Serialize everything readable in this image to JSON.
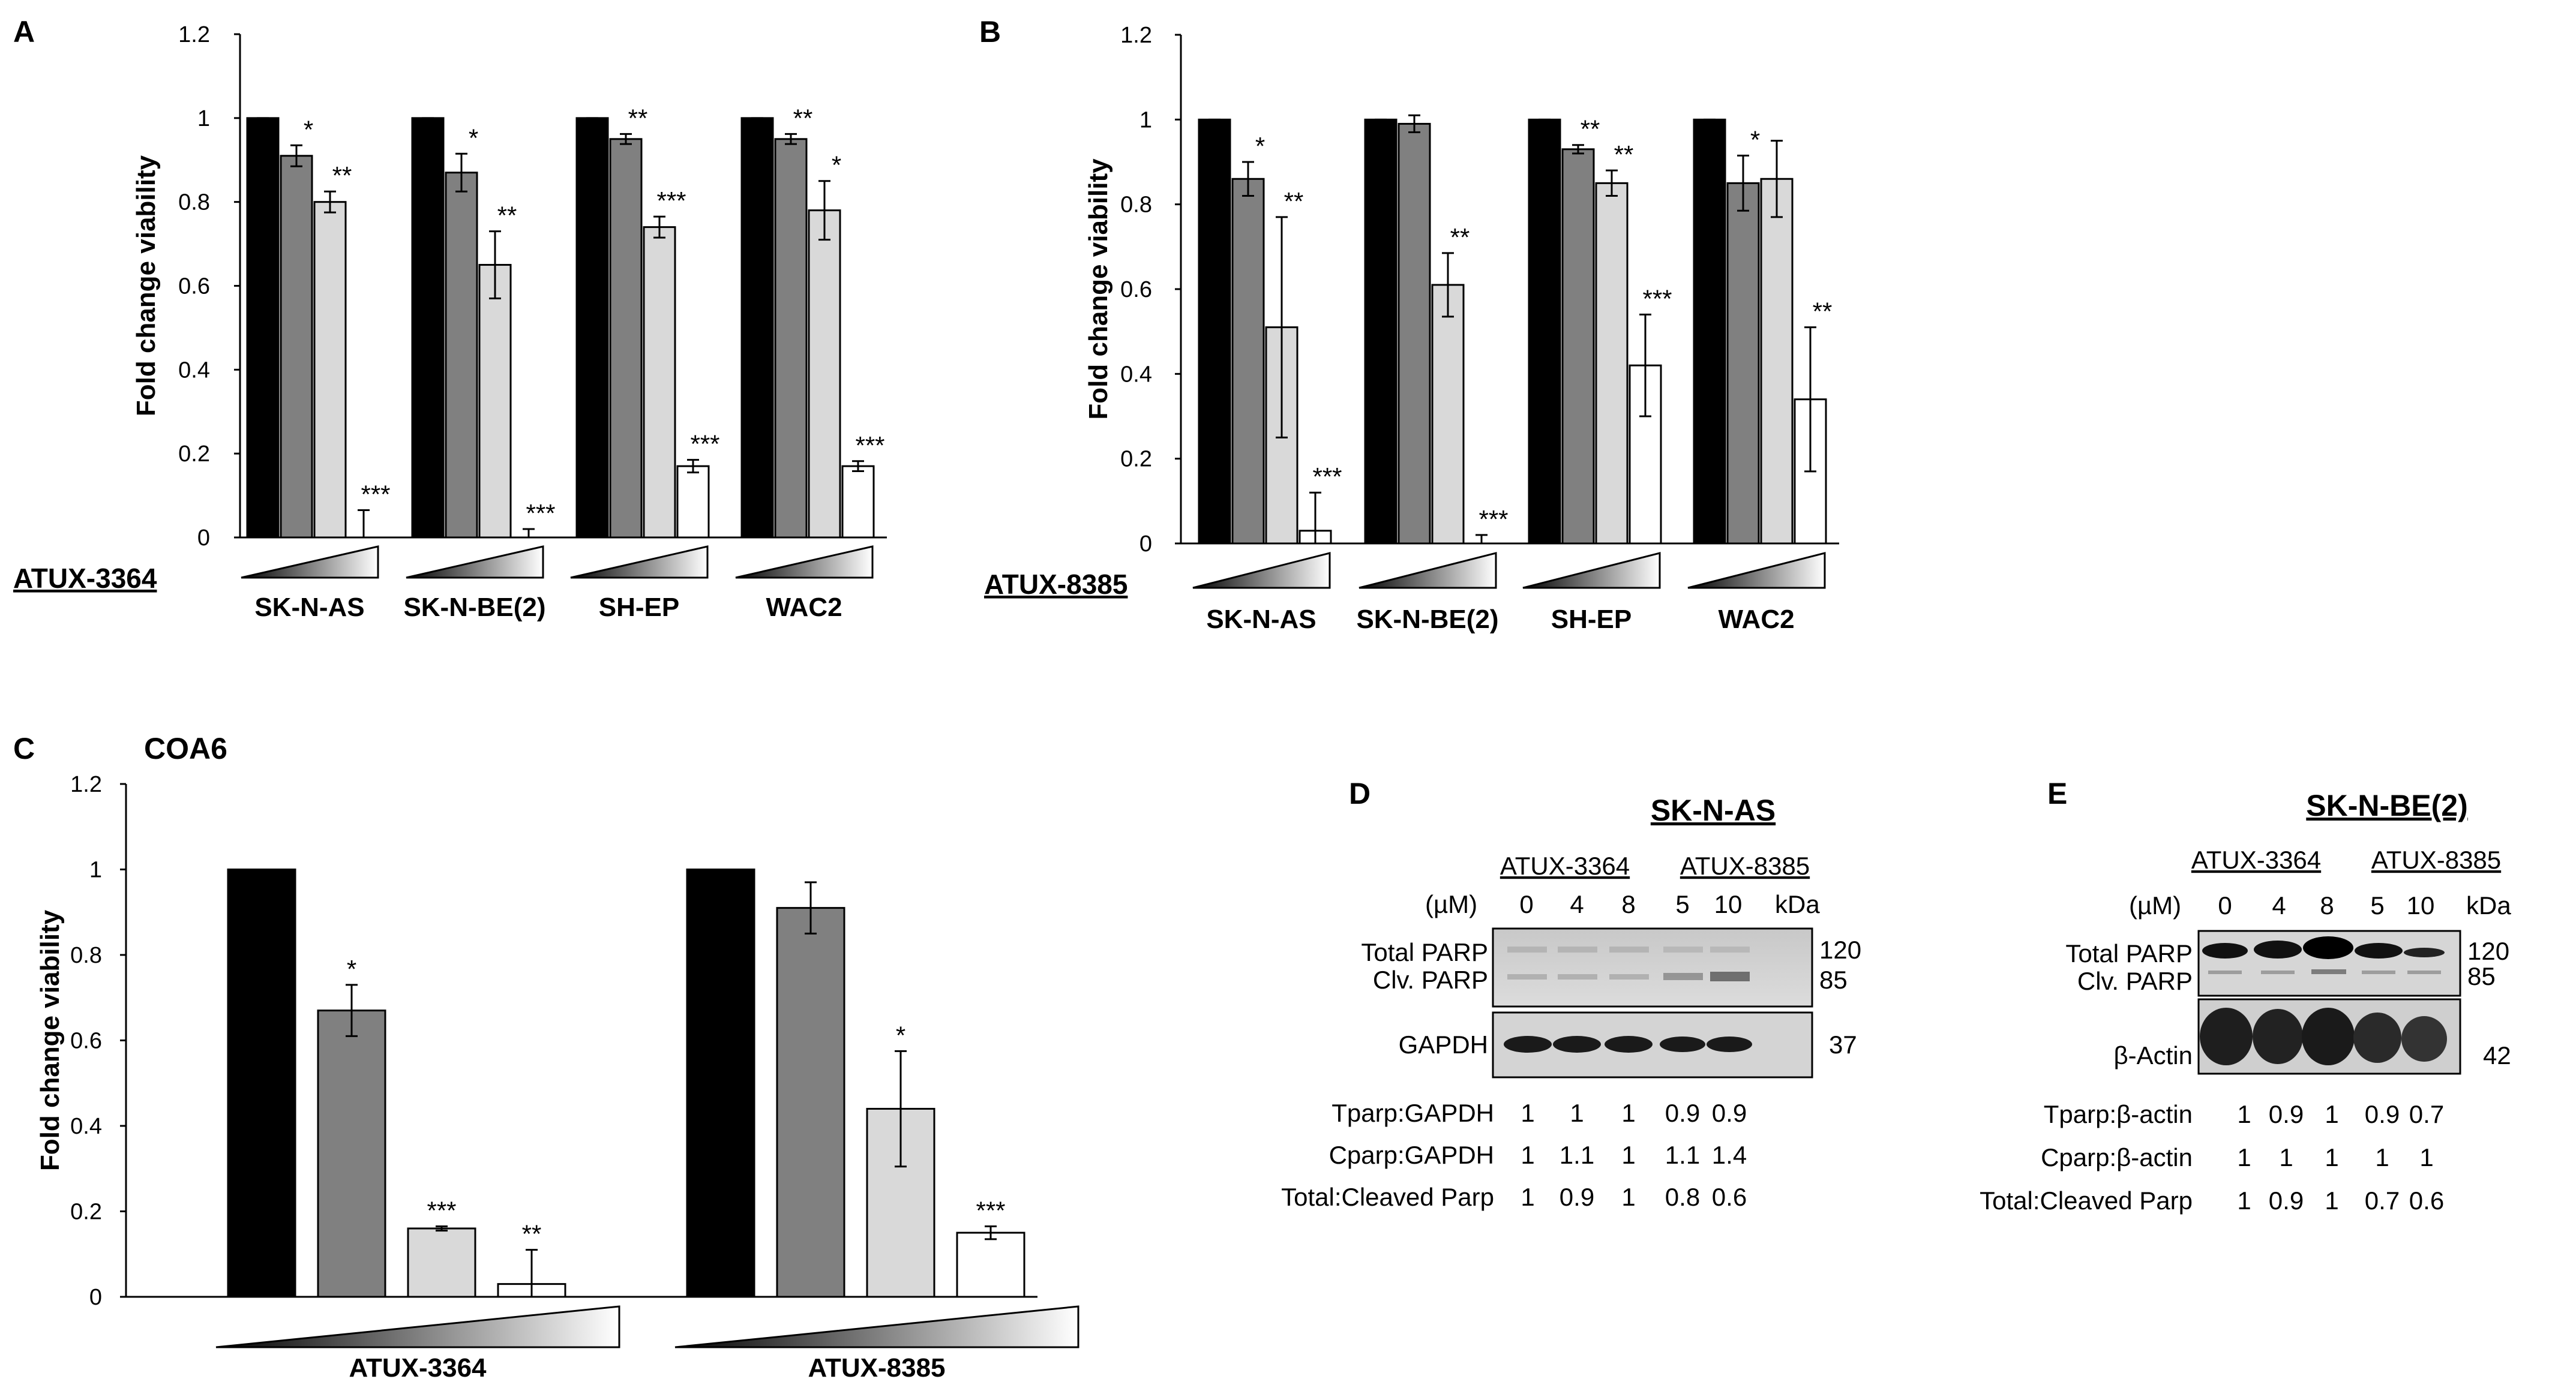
{
  "labels": {
    "A": "A",
    "B": "B",
    "C": "C",
    "D": "D",
    "E": "E"
  },
  "panel_c_title": "COA6",
  "chart_data": [
    {
      "id": "A",
      "type": "bar",
      "drug": "ATUX-3364",
      "ylabel": "Fold change viability",
      "ylim": [
        0,
        1.2
      ],
      "yticks": [
        "0",
        "0.2",
        "0.4",
        "0.6",
        "0.8",
        "1",
        "1.2"
      ],
      "groups": [
        {
          "name": "SK-N-AS",
          "values": [
            1.0,
            0.91,
            0.8,
            0.0
          ],
          "errors": [
            0.0,
            0.025,
            0.025,
            0.065
          ],
          "sig": [
            "",
            "*",
            "**",
            "***"
          ]
        },
        {
          "name": "SK-N-BE(2)",
          "values": [
            1.0,
            0.87,
            0.65,
            0.0
          ],
          "errors": [
            0.0,
            0.045,
            0.08,
            0.02
          ],
          "sig": [
            "",
            "*",
            "**",
            "***"
          ]
        },
        {
          "name": "SH-EP",
          "values": [
            1.0,
            0.95,
            0.74,
            0.17
          ],
          "errors": [
            0.0,
            0.012,
            0.025,
            0.015
          ],
          "sig": [
            "",
            "**",
            "***",
            "***"
          ]
        },
        {
          "name": "WAC2",
          "values": [
            1.0,
            0.95,
            0.78,
            0.17
          ],
          "errors": [
            0.0,
            0.012,
            0.07,
            0.012
          ],
          "sig": [
            "",
            "**",
            "*",
            "***"
          ]
        }
      ]
    },
    {
      "id": "B",
      "type": "bar",
      "drug": "ATUX-8385",
      "ylabel": "Fold change viability",
      "ylim": [
        0,
        1.2
      ],
      "yticks": [
        "0",
        "0.2",
        "0.4",
        "0.6",
        "0.8",
        "1",
        "1.2"
      ],
      "groups": [
        {
          "name": "SK-N-AS",
          "values": [
            1.0,
            0.86,
            0.51,
            0.03
          ],
          "errors": [
            0.0,
            0.04,
            0.26,
            0.09
          ],
          "sig": [
            "",
            "*",
            "**",
            "***"
          ]
        },
        {
          "name": "SK-N-BE(2)",
          "values": [
            1.0,
            0.99,
            0.61,
            0.0
          ],
          "errors": [
            0.0,
            0.02,
            0.075,
            0.02
          ],
          "sig": [
            "",
            "",
            "**",
            "***"
          ]
        },
        {
          "name": "SH-EP",
          "values": [
            1.0,
            0.93,
            0.85,
            0.42
          ],
          "errors": [
            0.0,
            0.01,
            0.03,
            0.12
          ],
          "sig": [
            "",
            "**",
            "**",
            "***"
          ]
        },
        {
          "name": "WAC2",
          "values": [
            1.0,
            0.85,
            0.86,
            0.34
          ],
          "errors": [
            0.0,
            0.065,
            0.09,
            0.17
          ],
          "sig": [
            "",
            "*",
            "",
            "**"
          ]
        }
      ]
    },
    {
      "id": "C",
      "type": "bar",
      "title": "COA6",
      "ylabel": "Fold change viability",
      "ylim": [
        0,
        1.2
      ],
      "yticks": [
        "0",
        "0.2",
        "0.4",
        "0.6",
        "0.8",
        "1",
        "1.2"
      ],
      "groups": [
        {
          "name": "ATUX-3364",
          "values": [
            1.0,
            0.67,
            0.16,
            0.03
          ],
          "errors": [
            0.0,
            0.06,
            0.005,
            0.08
          ],
          "sig": [
            "",
            "*",
            "***",
            "**"
          ]
        },
        {
          "name": "ATUX-8385",
          "values": [
            1.0,
            0.91,
            0.44,
            0.15
          ],
          "errors": [
            0.0,
            0.06,
            0.135,
            0.015
          ],
          "sig": [
            "",
            "",
            "*",
            "***"
          ]
        }
      ]
    }
  ],
  "blot_d": {
    "title": "SK-N-AS",
    "drug1": "ATUX-3364",
    "drug2": "ATUX-8385",
    "unit": "(µM)",
    "doses": [
      "0",
      "4",
      "8",
      "5",
      "10"
    ],
    "kda": "kDa",
    "band1_top": "Total PARP",
    "band1_bottom": "Clv. PARP",
    "band1_mw_top": "120",
    "band1_mw_bottom": "85",
    "band2": "GAPDH",
    "band2_mw": "37",
    "rows": [
      {
        "label": "Tparp:GAPDH",
        "values": [
          "1",
          "1",
          "1",
          "0.9",
          "0.9"
        ]
      },
      {
        "label": "Cparp:GAPDH",
        "values": [
          "1",
          "1.1",
          "1",
          "1.1",
          "1.4"
        ]
      },
      {
        "label": "Total:Cleaved Parp",
        "values": [
          "1",
          "0.9",
          "1",
          "0.8",
          "0.6"
        ]
      }
    ]
  },
  "blot_e": {
    "title": "SK-N-BE(2)",
    "drug1": "ATUX-3364",
    "drug2": "ATUX-8385",
    "unit": "(µM)",
    "doses": [
      "0",
      "4",
      "8",
      "5",
      "10"
    ],
    "kda": "kDa",
    "band1_top": "Total PARP",
    "band1_bottom": "Clv. PARP",
    "band1_mw_top": "120",
    "band1_mw_bottom": "85",
    "band2": "β-Actin",
    "band2_mw": "42",
    "rows": [
      {
        "label": "Tparp:β-actin",
        "values": [
          "1",
          "0.9",
          "1",
          "0.9",
          "0.7"
        ]
      },
      {
        "label": "Cparp:β-actin",
        "values": [
          "1",
          "1",
          "1",
          "1",
          "1"
        ]
      },
      {
        "label": "Total:Cleaved Parp",
        "values": [
          "1",
          "0.9",
          "1",
          "0.7",
          "0.6"
        ]
      }
    ]
  },
  "colors": {
    "dose0": "#000000",
    "dose1": "#808080",
    "dose2": "#d9d9d9",
    "dose3": "#ffffff"
  }
}
